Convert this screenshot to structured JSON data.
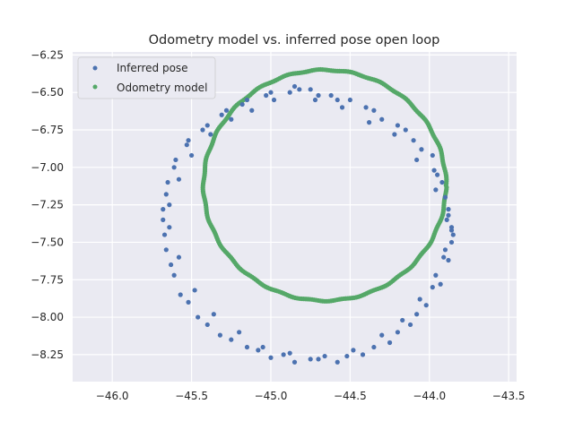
{
  "chart_data": {
    "type": "scatter",
    "title": "Odometry model vs. inferred pose open loop",
    "xlabel": "",
    "ylabel": "",
    "xlim": [
      -46.25,
      -43.45
    ],
    "ylim": [
      -8.43,
      -6.23
    ],
    "xticks": [
      -46.0,
      -45.5,
      -45.0,
      -44.5,
      -44.0,
      -43.5
    ],
    "xtick_labels": [
      "−46.0",
      "−45.5",
      "−45.0",
      "−44.5",
      "−44.0",
      "−43.5"
    ],
    "yticks": [
      -6.25,
      -6.5,
      -6.75,
      -7.0,
      -7.25,
      -7.5,
      -7.75,
      -8.0,
      -8.25
    ],
    "ytick_labels": [
      "−6.25",
      "−6.50",
      "−6.75",
      "−7.00",
      "−7.25",
      "−7.50",
      "−7.75",
      "−8.00",
      "−8.25"
    ],
    "grid": true,
    "legend_position": "top-left",
    "series": [
      {
        "name": "Inferred pose",
        "color": "#4c72b0",
        "x": [
          -44.62,
          -44.35,
          -44.15,
          -43.98,
          -43.92,
          -43.88,
          -43.85,
          -43.88,
          -43.93,
          -44.02,
          -44.12,
          -44.25,
          -44.42,
          -44.58,
          -44.75,
          -44.92,
          -45.08,
          -45.25,
          -45.4,
          -45.52,
          -45.61,
          -45.66,
          -45.68,
          -45.66,
          -45.61,
          -45.53,
          -45.43,
          -45.31,
          -45.18,
          -45.03,
          -44.88,
          -44.75,
          -44.5,
          -44.3,
          -44.1,
          -43.97,
          -43.9,
          -43.86,
          -43.9,
          -43.96,
          -44.06,
          -44.17,
          -44.3,
          -44.48,
          -44.66,
          -44.85,
          -45.0,
          -45.15,
          -45.32,
          -45.46,
          -45.57,
          -45.63,
          -45.67,
          -45.64,
          -45.58,
          -45.5,
          -45.38,
          -45.25,
          -45.12,
          -44.98,
          -44.82,
          -44.7,
          -44.58,
          -44.4,
          -44.2,
          -44.05,
          -43.95,
          -43.88,
          -43.86,
          -43.86,
          -43.91,
          -43.98,
          -44.08,
          -44.2,
          -44.35,
          -44.52,
          -44.7,
          -44.88,
          -45.05,
          -45.2,
          -45.36,
          -45.48,
          -45.58,
          -45.64,
          -45.68,
          -45.65,
          -45.6,
          -45.52,
          -45.4,
          -45.28,
          -45.15,
          -45.0,
          -44.85,
          -44.72,
          -44.55,
          -44.38,
          -44.22,
          -44.08,
          -43.96,
          -43.89
        ],
        "y": [
          -6.52,
          -6.62,
          -6.75,
          -6.92,
          -7.1,
          -7.28,
          -7.45,
          -7.62,
          -7.78,
          -7.92,
          -8.05,
          -8.17,
          -8.25,
          -8.3,
          -8.28,
          -8.25,
          -8.22,
          -8.15,
          -8.05,
          -7.9,
          -7.72,
          -7.55,
          -7.35,
          -7.18,
          -7.0,
          -6.85,
          -6.75,
          -6.65,
          -6.58,
          -6.52,
          -6.5,
          -6.48,
          -6.55,
          -6.68,
          -6.82,
          -7.02,
          -7.2,
          -7.4,
          -7.55,
          -7.72,
          -7.88,
          -8.02,
          -8.12,
          -8.22,
          -8.26,
          -8.3,
          -8.27,
          -8.2,
          -8.12,
          -8.0,
          -7.85,
          -7.65,
          -7.45,
          -7.25,
          -7.08,
          -6.92,
          -6.78,
          -6.68,
          -6.62,
          -6.55,
          -6.48,
          -6.52,
          -6.55,
          -6.6,
          -6.72,
          -6.88,
          -7.05,
          -7.32,
          -7.5,
          -7.42,
          -7.6,
          -7.8,
          -7.98,
          -8.1,
          -8.2,
          -8.26,
          -8.28,
          -8.24,
          -8.2,
          -8.1,
          -7.98,
          -7.82,
          -7.6,
          -7.4,
          -7.28,
          -7.1,
          -6.95,
          -6.82,
          -6.72,
          -6.62,
          -6.55,
          -6.5,
          -6.46,
          -6.55,
          -6.6,
          -6.7,
          -6.78,
          -6.95,
          -7.15,
          -7.35
        ]
      },
      {
        "name": "Odometry model",
        "color": "#55a868",
        "center": [
          -44.66,
          -7.12
        ],
        "radius_x": 0.765,
        "radius_y": 0.77
      }
    ]
  }
}
